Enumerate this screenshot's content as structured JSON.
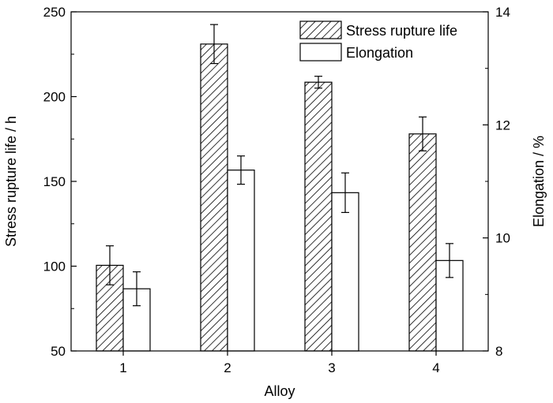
{
  "chart_data": {
    "type": "bar",
    "title": "",
    "xlabel": "Alloy",
    "categories": [
      "1",
      "2",
      "3",
      "4"
    ],
    "y_left": {
      "label": "Stress rupture life / h",
      "lim": [
        50,
        250
      ],
      "ticks": [
        50,
        100,
        150,
        200,
        250
      ]
    },
    "y_right": {
      "label": "Elongation / %",
      "lim": [
        8,
        14
      ],
      "ticks": [
        8,
        10,
        12,
        14
      ]
    },
    "series": [
      {
        "name": "Stress rupture life",
        "axis": "left",
        "fill": "hatched",
        "values": [
          100.5,
          231,
          208.5,
          178
        ],
        "error": [
          11.5,
          11.5,
          3.5,
          10
        ]
      },
      {
        "name": "Elongation",
        "axis": "right",
        "fill": "white",
        "values": [
          9.1,
          11.2,
          10.8,
          9.6
        ],
        "error": [
          0.3,
          0.25,
          0.35,
          0.3
        ]
      }
    ],
    "legend_position": "top-right",
    "grid": false,
    "colors": {
      "stroke": "#000000",
      "background": "#ffffff"
    }
  }
}
